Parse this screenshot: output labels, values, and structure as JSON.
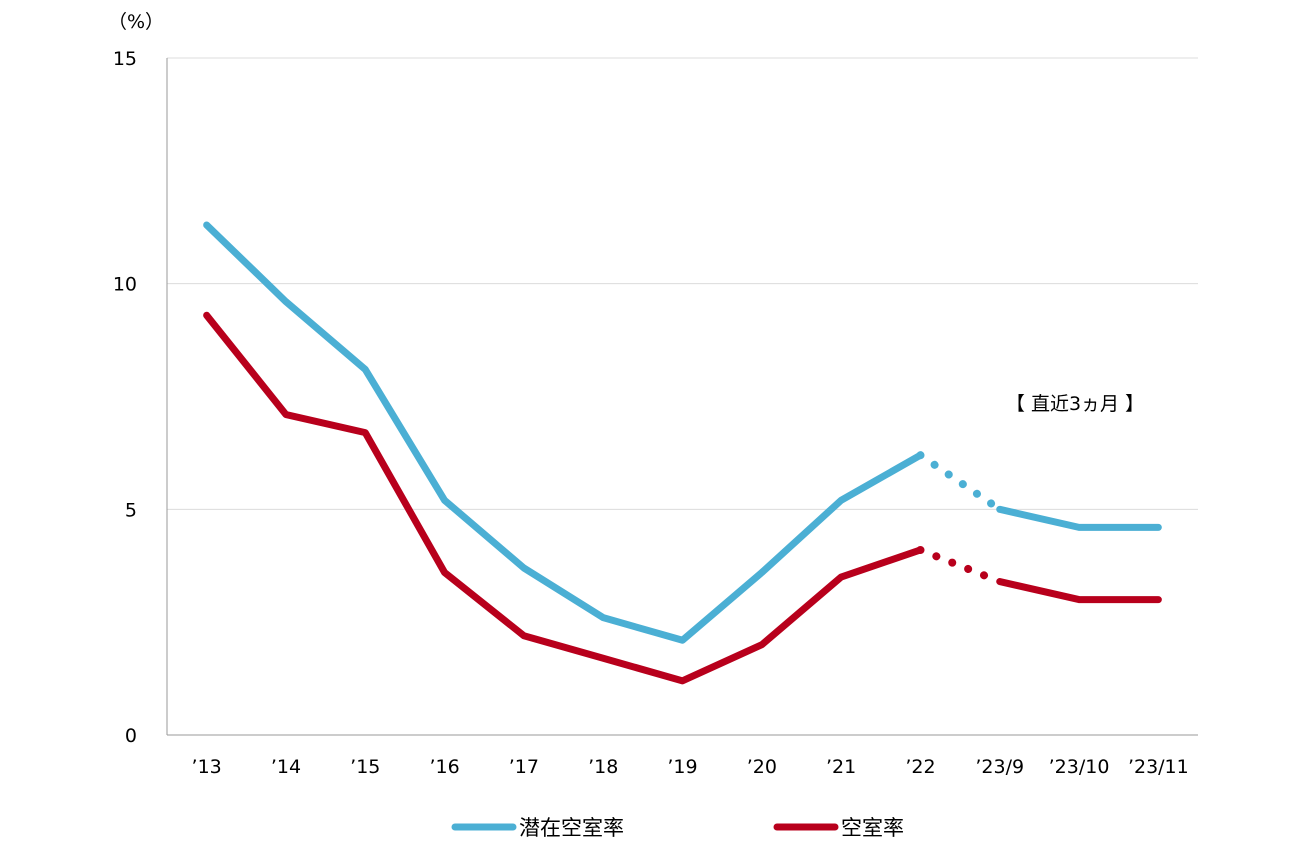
{
  "chart_data": {
    "type": "line",
    "y_unit_label": "（%）",
    "categories": [
      "’13",
      "’14",
      "’15",
      "’16",
      "’17",
      "’18",
      "’19",
      "’20",
      "’21",
      "’22",
      "’23/9",
      "’23/10",
      "’23/11"
    ],
    "ylim": [
      0,
      15
    ],
    "yticks": [
      "0",
      "5",
      "10",
      "15"
    ],
    "grid": true,
    "legend_position": "bottom",
    "annotation": "【 直近3ヵ月 】",
    "dotted_segment": {
      "from_index": 9,
      "to_index": 10
    },
    "series": [
      {
        "name": "潜在空室率",
        "color": "#4bafd4",
        "values": [
          11.3,
          9.6,
          8.1,
          5.2,
          3.7,
          2.6,
          2.1,
          3.6,
          5.2,
          6.2,
          5.0,
          4.6,
          4.6
        ]
      },
      {
        "name": "空室率",
        "color": "#b8001c",
        "values": [
          9.3,
          7.1,
          6.7,
          3.6,
          2.2,
          1.7,
          1.2,
          2.0,
          3.5,
          4.1,
          3.4,
          3.0,
          3.0
        ]
      }
    ]
  }
}
